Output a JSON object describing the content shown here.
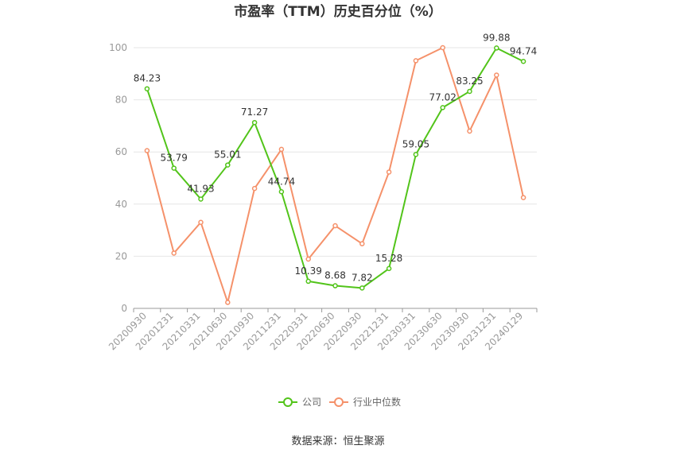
{
  "chart_data": {
    "type": "line",
    "title": "市盈率（TTM）历史百分位（%）",
    "categories": [
      "20200930",
      "20201231",
      "20210331",
      "20210630",
      "20210930",
      "20211231",
      "20220331",
      "20220630",
      "20220930",
      "20221231",
      "20230331",
      "20230630",
      "20230930",
      "20231231",
      "20240129"
    ],
    "ylim": [
      0,
      100
    ],
    "yticks": [
      0,
      20,
      40,
      60,
      80,
      100
    ],
    "grid": true,
    "legend_position": "bottom",
    "series": [
      {
        "name": "公司",
        "color": "#52c41a",
        "values": [
          84.23,
          53.79,
          41.93,
          55.01,
          71.27,
          44.74,
          10.39,
          8.68,
          7.82,
          15.28,
          59.05,
          77.02,
          83.25,
          99.88,
          94.74
        ],
        "labels": [
          "84.23",
          "53.79",
          "41.93",
          "55.01",
          "71.27",
          "44.74",
          "10.39",
          "8.68",
          "7.82",
          "15.28",
          "59.05",
          "77.02",
          "83.25",
          "99.88",
          "94.74"
        ]
      },
      {
        "name": "行业中位数",
        "color": "#f5916a",
        "values": [
          60.5,
          21.2,
          33.0,
          2.3,
          46.0,
          61.0,
          18.9,
          31.7,
          24.8,
          52.3,
          95.0,
          100.0,
          68.0,
          89.5,
          42.5
        ]
      }
    ],
    "source": "数据来源：恒生聚源"
  }
}
